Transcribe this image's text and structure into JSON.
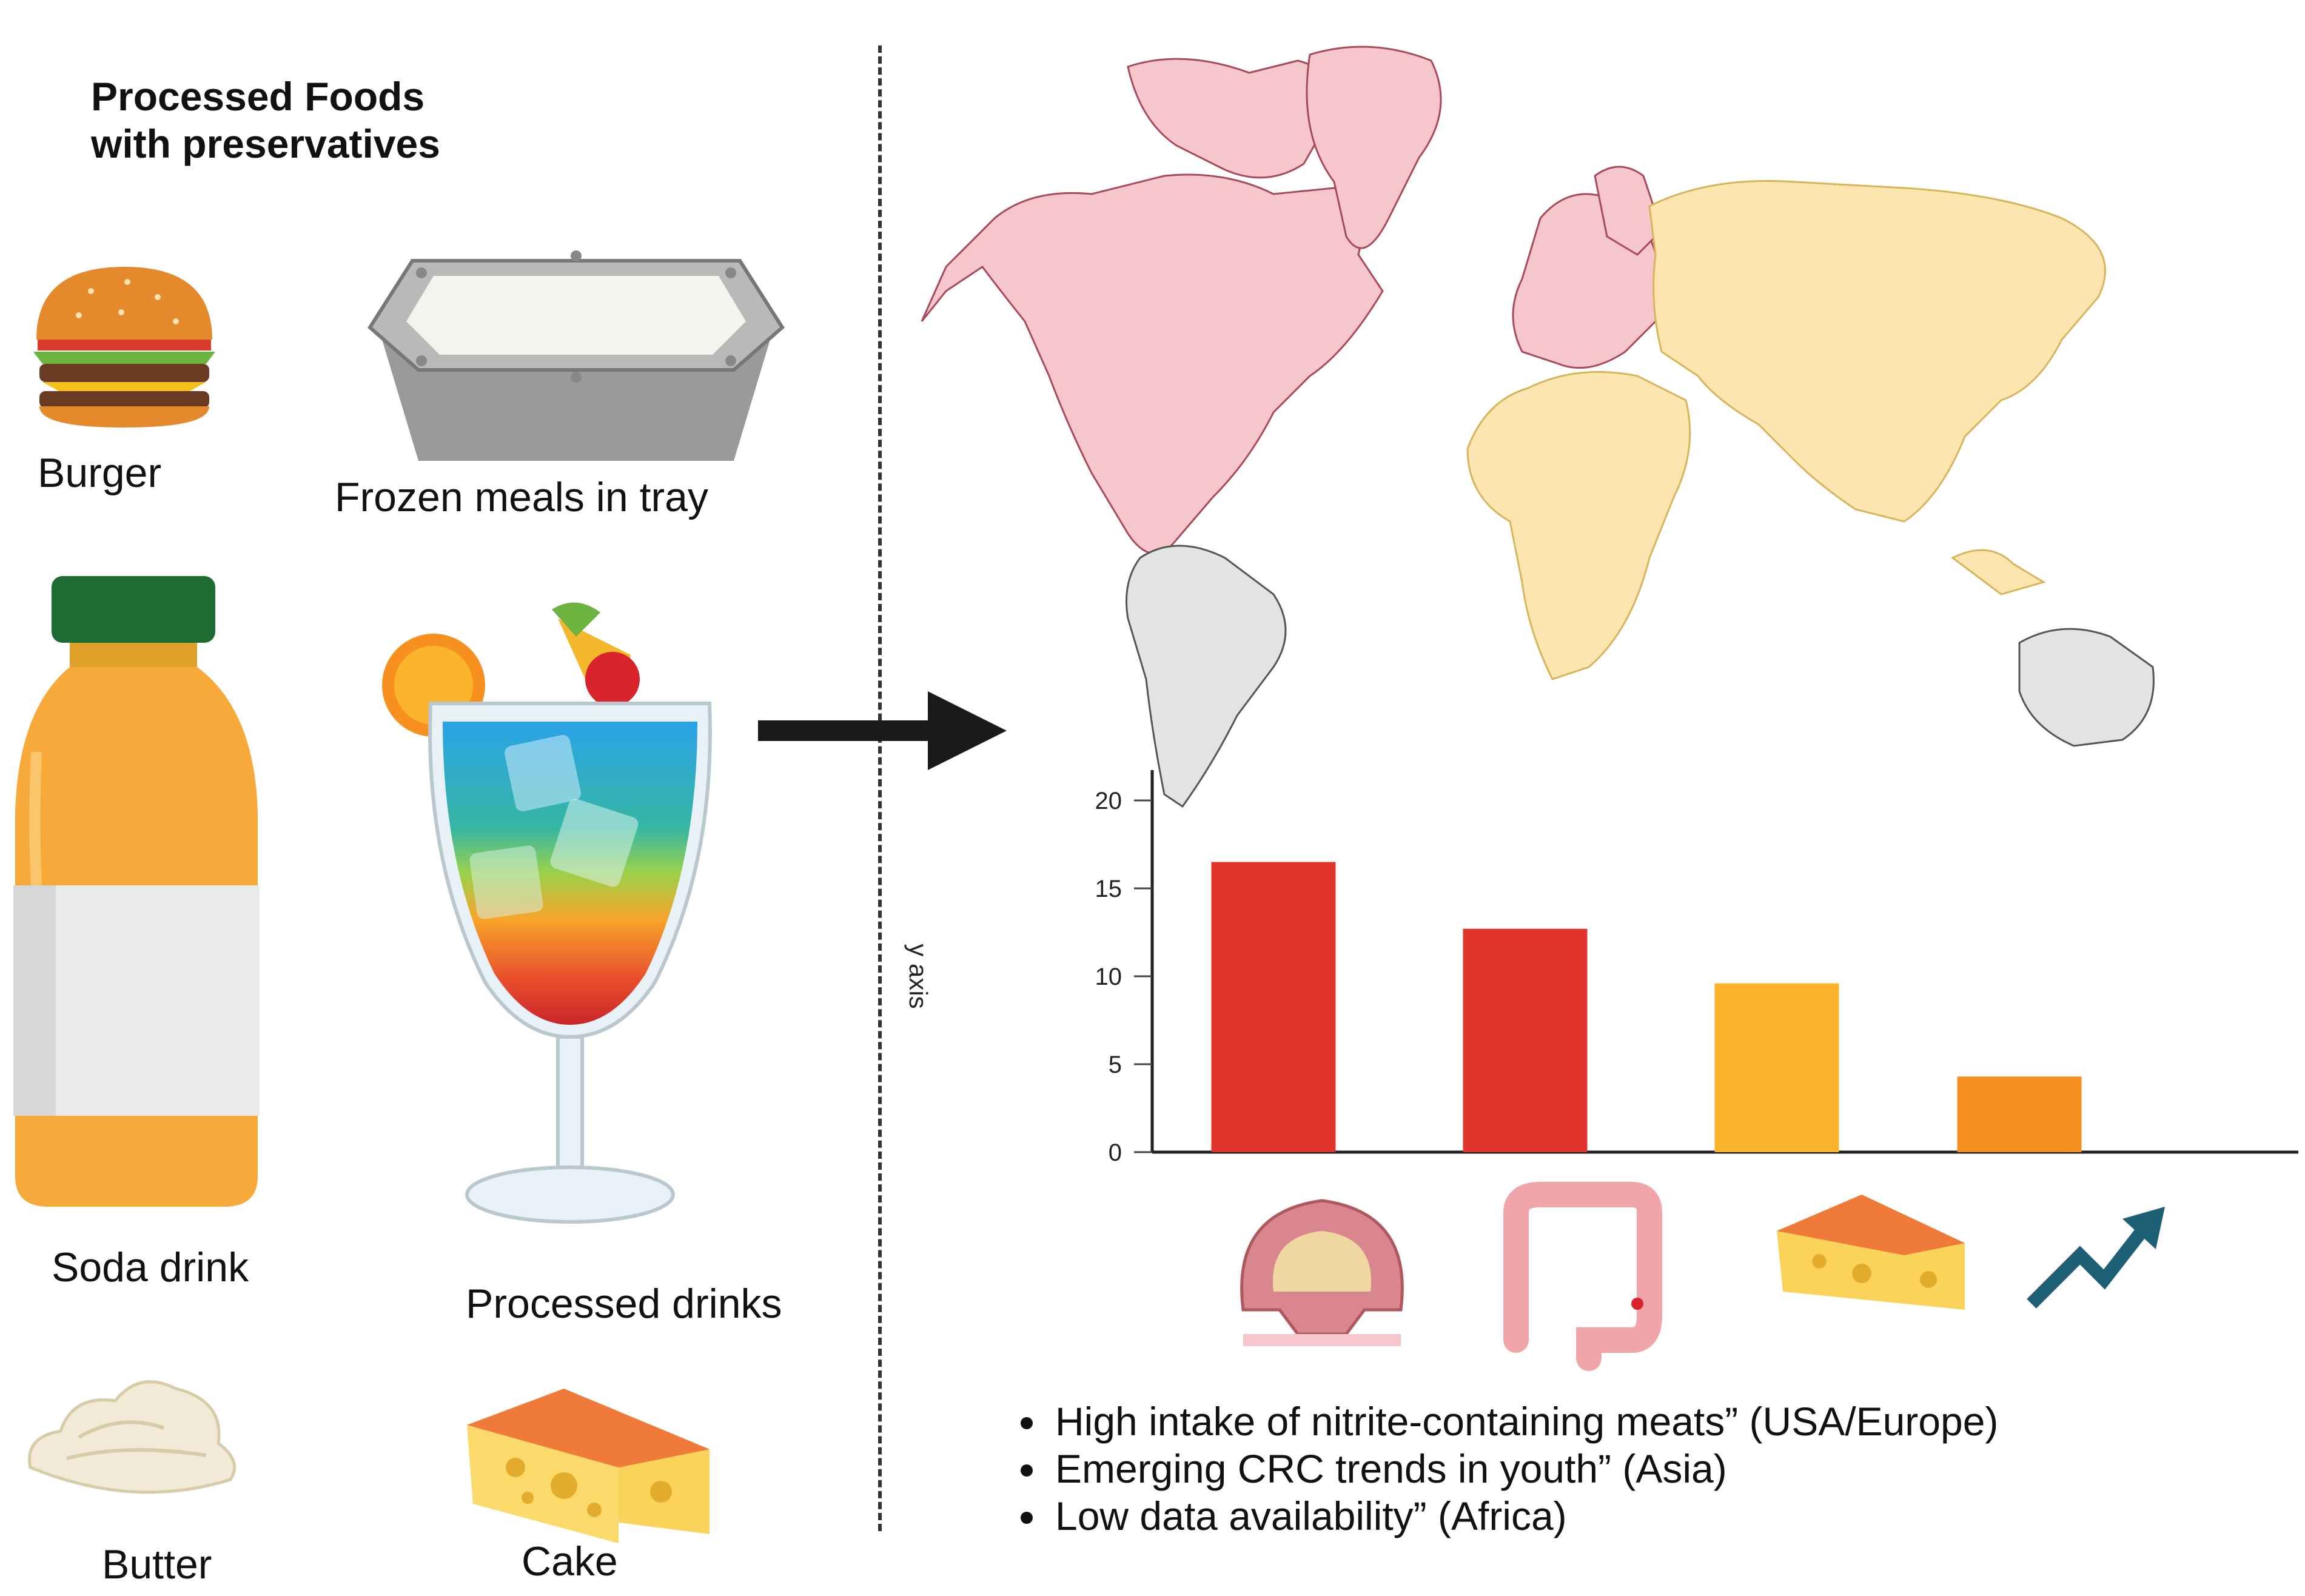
{
  "title": {
    "line1": "Processed Foods",
    "line2": "with preservatives"
  },
  "foods": {
    "burger": "Burger",
    "frozen_meals": "Frozen meals in tray",
    "soda": "Soda drink",
    "processed_drinks": "Processed drinks",
    "butter": "Butter",
    "cake": "Cake"
  },
  "map": {
    "colors": {
      "americas_europe": "#f5c6cb",
      "asia_africa": "#fde5b0",
      "other": "#e3e3e3"
    }
  },
  "chart_data": {
    "type": "bar",
    "title": "",
    "xlabel": "",
    "ylabel": "y axis",
    "ylim": [
      0,
      20
    ],
    "yticks": [
      0,
      5,
      10,
      15,
      20
    ],
    "categories": [
      "rectal-cancer-icon",
      "colon-icon",
      "cheese-icon",
      "rising-trend-icon"
    ],
    "values": [
      16.5,
      12.7,
      9.6,
      4.3
    ],
    "colors": [
      "#e0342c",
      "#e0342c",
      "#fbb42c",
      "#f7901e"
    ],
    "grid": false
  },
  "bullets": [
    "High intake of nitrite-containing meats” (USA/Europe)",
    "Emerging CRC trends in youth” (Asia)",
    "Low data availability” (Africa)"
  ]
}
